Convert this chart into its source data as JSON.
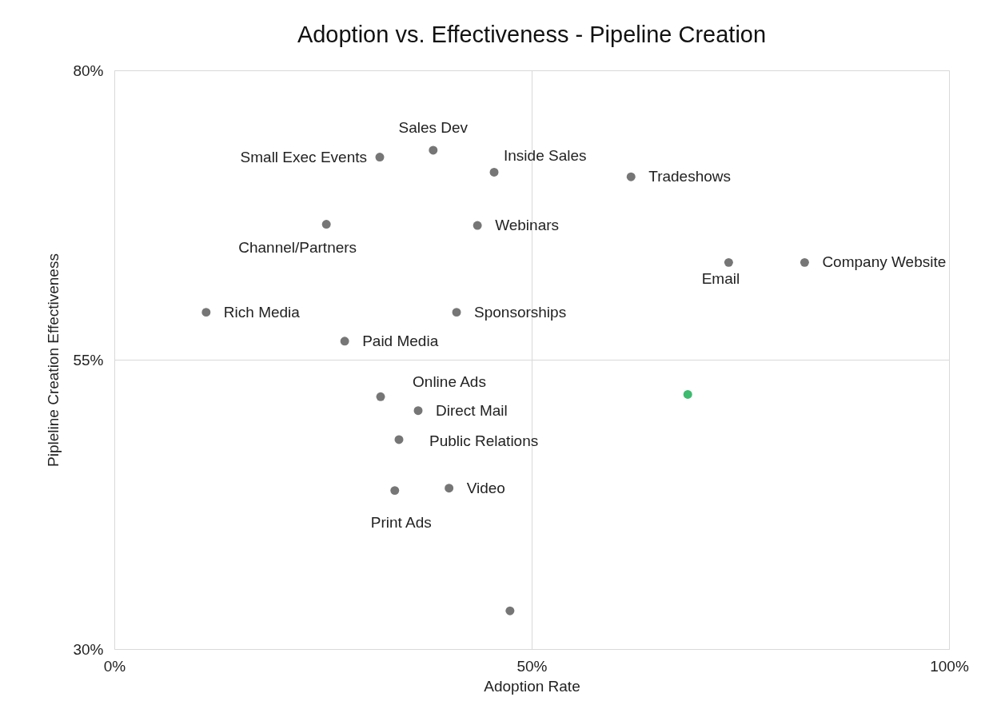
{
  "chart_data": {
    "type": "scatter",
    "title": "Adoption vs. Effectiveness - Pipeline Creation",
    "xlabel": "Adoption Rate",
    "ylabel": "Pipleline Creation Effectiveness",
    "x": [
      31.8,
      38.2,
      45.5,
      61.9,
      25.4,
      43.5,
      73.6,
      82.7,
      11.0,
      41.0,
      27.6,
      31.9,
      68.7,
      36.4,
      34.1,
      40.1,
      33.6,
      47.4
    ],
    "values": [
      72.5,
      73.1,
      71.2,
      70.8,
      66.7,
      66.6,
      63.4,
      63.4,
      59.1,
      59.1,
      56.6,
      51.8,
      52.0,
      50.6,
      48.1,
      43.9,
      43.7,
      33.3
    ],
    "colors": [
      "#767676",
      "#767676",
      "#767676",
      "#767676",
      "#767676",
      "#767676",
      "#767676",
      "#767676",
      "#767676",
      "#767676",
      "#767676",
      "#767676",
      "#3dbb6e",
      "#767676",
      "#767676",
      "#767676",
      "#767676",
      "#767676"
    ],
    "xlim": [
      0,
      100
    ],
    "ylim": [
      30,
      80
    ],
    "xticks": [
      {
        "value": 0,
        "label": "0%"
      },
      {
        "value": 50,
        "label": "50%"
      },
      {
        "value": 100,
        "label": "100%"
      }
    ],
    "yticks": [
      {
        "value": 30,
        "label": "30%"
      },
      {
        "value": 55,
        "label": "55%"
      },
      {
        "value": 80,
        "label": "80%"
      }
    ],
    "grid": true,
    "marker": "circle",
    "annotations": [
      {
        "text": "Small Exec Events",
        "x": 31.8,
        "y": 72.5
      },
      {
        "text": "Sales Dev",
        "x": 38.2,
        "y": 73.1
      },
      {
        "text": "Inside Sales",
        "x": 45.5,
        "y": 71.2
      },
      {
        "text": "Tradeshows",
        "x": 61.9,
        "y": 70.8
      },
      {
        "text": "Channel/Partners",
        "x": 25.4,
        "y": 66.7
      },
      {
        "text": "Webinars",
        "x": 43.5,
        "y": 66.6
      },
      {
        "text": "Email",
        "x": 73.6,
        "y": 63.4
      },
      {
        "text": "Company Website",
        "x": 82.7,
        "y": 63.4
      },
      {
        "text": "Rich Media",
        "x": 11.0,
        "y": 59.1
      },
      {
        "text": "Sponsorships",
        "x": 41.0,
        "y": 59.1
      },
      {
        "text": "Paid Media",
        "x": 27.6,
        "y": 56.6
      },
      {
        "text": "Online Ads",
        "x": 31.9,
        "y": 51.8
      },
      {
        "text": "Direct Mail",
        "x": 36.4,
        "y": 50.6
      },
      {
        "text": "Public Relations",
        "x": 34.1,
        "y": 48.1
      },
      {
        "text": "Video",
        "x": 40.1,
        "y": 43.9
      },
      {
        "text": "Print Ads",
        "x": 33.6,
        "y": 43.7
      }
    ]
  }
}
